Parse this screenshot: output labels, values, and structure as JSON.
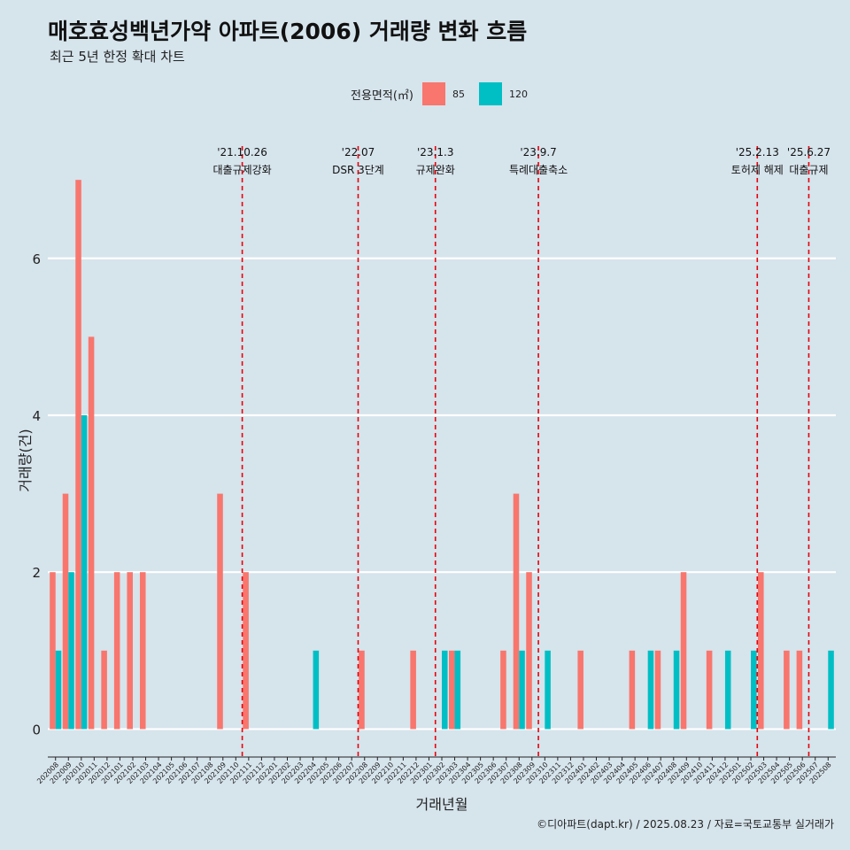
{
  "title": "매호효성백년가약 아파트(2006) 거래량 변화 흐름",
  "subtitle": "최근 5년 한정 확대 차트",
  "caption": "©디아파트(dapt.kr) / 2025.08.23 / 자료=국토교통부 실거래가",
  "legend": {
    "title": "전용면적(㎡)",
    "items": [
      {
        "label": "85",
        "color": "#f8766d"
      },
      {
        "label": "120",
        "color": "#00bfc4"
      }
    ]
  },
  "chart_data": {
    "type": "bar",
    "xlabel": "거래년월",
    "ylabel": "거래량(건)",
    "ylim": [
      -0.3,
      7.6
    ],
    "yticks": [
      0,
      2,
      4,
      6
    ],
    "categories": [
      "202008",
      "202009",
      "202010",
      "202011",
      "202012",
      "202101",
      "202102",
      "202103",
      "202104",
      "202105",
      "202106",
      "202107",
      "202108",
      "202109",
      "202110",
      "202111",
      "202112",
      "202201",
      "202202",
      "202203",
      "202204",
      "202205",
      "202206",
      "202207",
      "202208",
      "202209",
      "202210",
      "202211",
      "202212",
      "202301",
      "202302",
      "202303",
      "202304",
      "202305",
      "202306",
      "202307",
      "202308",
      "202309",
      "202310",
      "202311",
      "202312",
      "202401",
      "202402",
      "202403",
      "202404",
      "202405",
      "202406",
      "202407",
      "202408",
      "202409",
      "202410",
      "202411",
      "202412",
      "202501",
      "202502",
      "202503",
      "202504",
      "202505",
      "202506",
      "202507",
      "202508"
    ],
    "series": [
      {
        "name": "85",
        "color": "#f8766d",
        "values": [
          2,
          3,
          7,
          5,
          1,
          2,
          2,
          2,
          0,
          0,
          0,
          0,
          0,
          3,
          0,
          2,
          0,
          0,
          0,
          0,
          0,
          0,
          0,
          0,
          1,
          0,
          0,
          0,
          1,
          0,
          0,
          1,
          0,
          0,
          0,
          1,
          3,
          2,
          0,
          0,
          0,
          1,
          0,
          0,
          0,
          1,
          0,
          1,
          0,
          2,
          0,
          1,
          0,
          0,
          0,
          2,
          0,
          1,
          1,
          0,
          0
        ]
      },
      {
        "name": "120",
        "color": "#00bfc4",
        "values": [
          1,
          2,
          4,
          0,
          0,
          0,
          0,
          0,
          0,
          0,
          0,
          0,
          0,
          0,
          0,
          0,
          0,
          0,
          0,
          0,
          1,
          0,
          0,
          0,
          0,
          0,
          0,
          0,
          0,
          0,
          1,
          1,
          0,
          0,
          0,
          0,
          1,
          0,
          1,
          0,
          0,
          0,
          0,
          0,
          0,
          0,
          1,
          0,
          1,
          0,
          0,
          0,
          1,
          0,
          1,
          0,
          0,
          0,
          0,
          0,
          1
        ]
      }
    ],
    "annotations": [
      {
        "x": 14.5,
        "date": "'21.10.26",
        "label": "대출규제강화",
        "color": "#e8000b"
      },
      {
        "x": 23.5,
        "date": "'22.07",
        "label": "DSR 3단계",
        "color": "#e8000b"
      },
      {
        "x": 29.5,
        "date": "'23.1.3",
        "label": "규제완화",
        "color": "#e8000b"
      },
      {
        "x": 37.5,
        "date": "'23.9.7",
        "label": "특례대출축소",
        "color": "#e8000b"
      },
      {
        "x": 54.5,
        "date": "'25.2.13",
        "label": "토허제 해제",
        "color": "#e8000b"
      },
      {
        "x": 58.5,
        "date": "'25.6.27",
        "label": "대출규제",
        "color": "#e8000b"
      }
    ]
  }
}
